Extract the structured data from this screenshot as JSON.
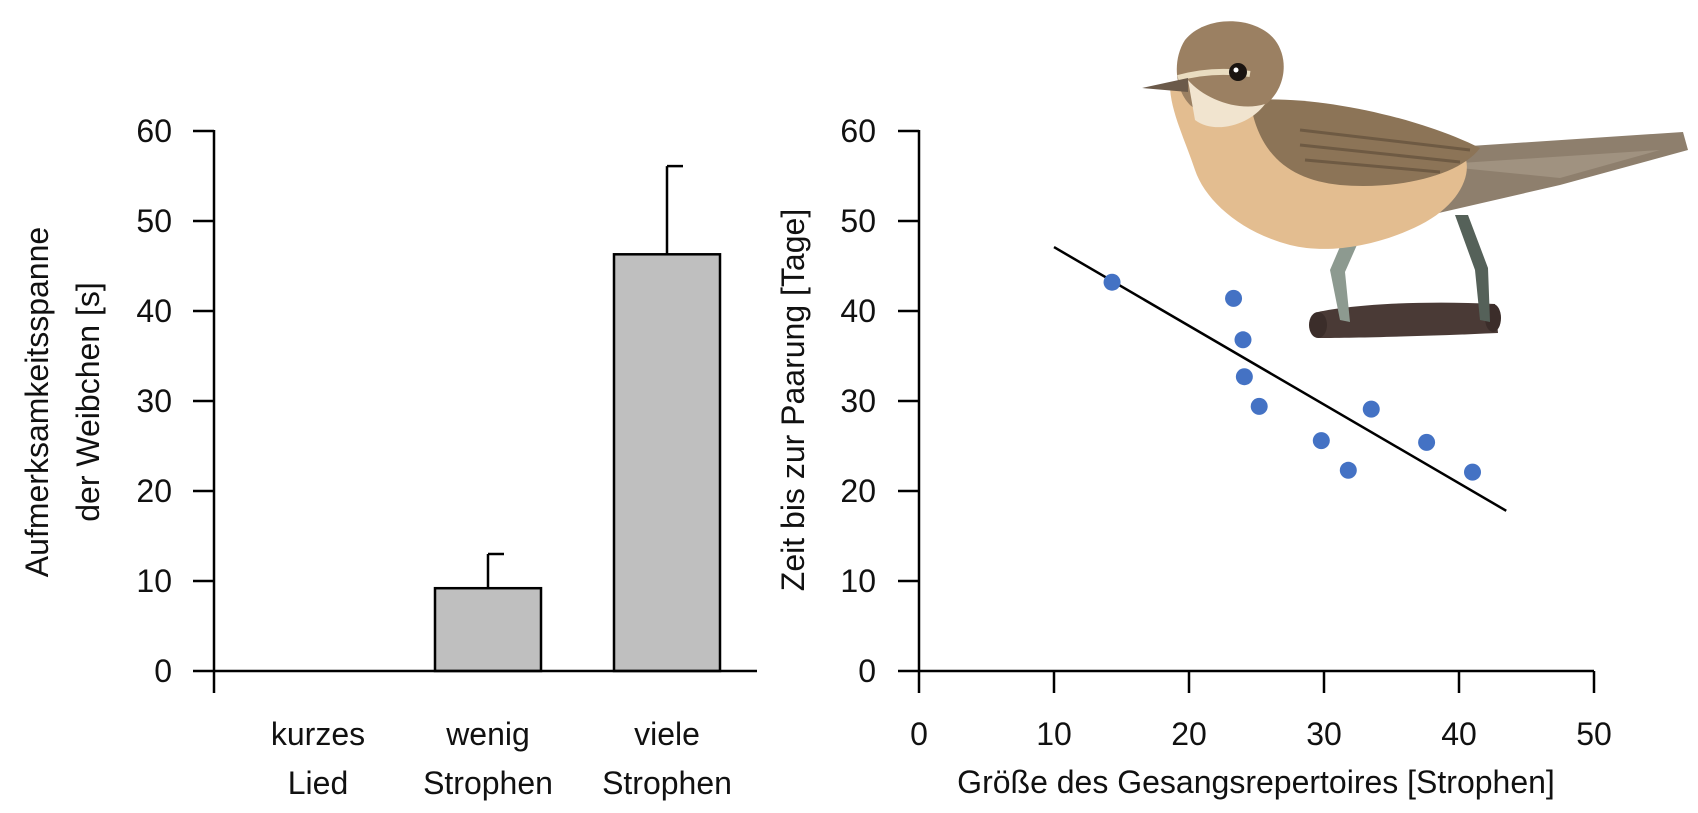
{
  "chart_data": [
    {
      "type": "bar",
      "ylabel_lines": [
        "Aufmerksamkeitsspanne",
        "der Weibchen [s]"
      ],
      "ylim": [
        0,
        60
      ],
      "yticks": [
        0,
        10,
        20,
        30,
        40,
        50,
        60
      ],
      "categories": [
        {
          "line1": "kurzes",
          "line2": "Lied"
        },
        {
          "line1": "wenig",
          "line2": "Strophen"
        },
        {
          "line1": "viele",
          "line2": "Strophen"
        }
      ],
      "values": [
        0,
        9.2,
        46.3
      ],
      "errors": [
        0,
        3.8,
        9.8
      ],
      "bar_color": "#bfbfbf"
    },
    {
      "type": "scatter",
      "xlabel": "Größe des Gesangsrepertoires [Strophen]",
      "ylabel": "Zeit bis zur Paarung [Tage]",
      "xlim": [
        0,
        50
      ],
      "ylim": [
        0,
        60
      ],
      "xticks": [
        0,
        10,
        20,
        30,
        40,
        50
      ],
      "yticks": [
        0,
        10,
        20,
        30,
        40,
        50,
        60
      ],
      "points": [
        {
          "x": 14.3,
          "y": 43.2
        },
        {
          "x": 23.3,
          "y": 41.4
        },
        {
          "x": 24.0,
          "y": 36.8
        },
        {
          "x": 24.1,
          "y": 32.7
        },
        {
          "x": 25.2,
          "y": 29.4
        },
        {
          "x": 29.8,
          "y": 25.6
        },
        {
          "x": 31.8,
          "y": 22.3
        },
        {
          "x": 33.5,
          "y": 29.1
        },
        {
          "x": 37.6,
          "y": 25.4
        },
        {
          "x": 41.0,
          "y": 22.1
        }
      ],
      "trendline": {
        "x1": 10.0,
        "y1": 47.1,
        "x2": 43.5,
        "y2": 17.8
      },
      "point_color": "#4472c4",
      "illustration": "reed-warbler-on-branch"
    }
  ]
}
